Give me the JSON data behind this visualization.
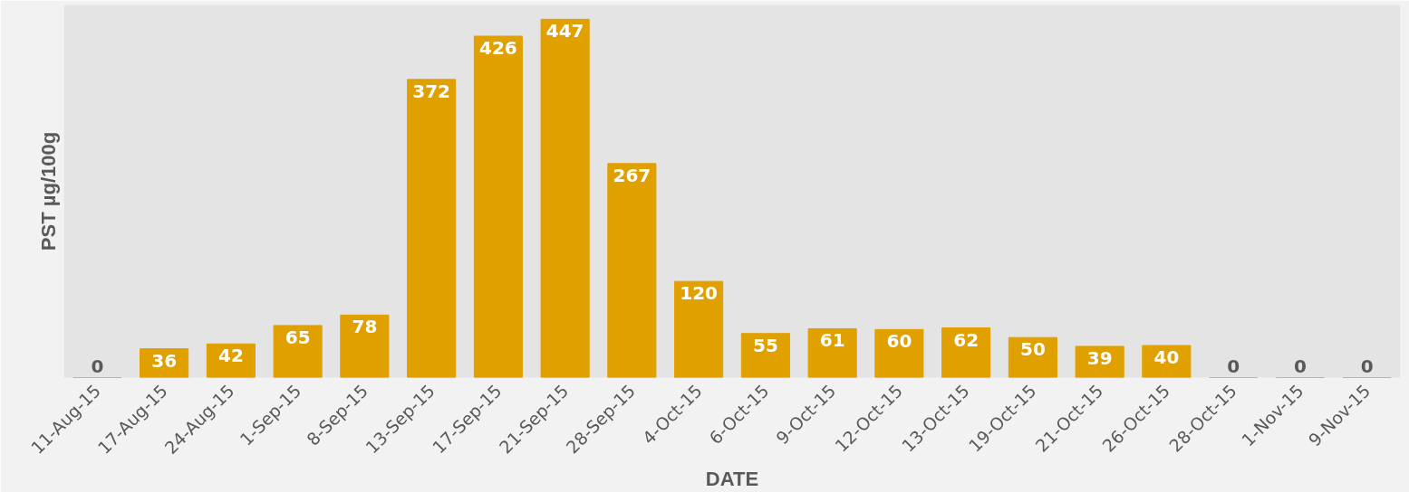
{
  "chart_data": {
    "type": "bar",
    "xlabel": "DATE",
    "ylabel": "PST µg/100g",
    "categories": [
      "11-Aug-15",
      "17-Aug-15",
      "24-Aug-15",
      "1-Sep-15",
      "8-Sep-15",
      "13-Sep-15",
      "17-Sep-15",
      "21-Sep-15",
      "28-Sep-15",
      "4-Oct-15",
      "6-Oct-15",
      "9-Oct-15",
      "12-Oct-15",
      "13-Oct-15",
      "19-Oct-15",
      "21-Oct-15",
      "26-Oct-15",
      "28-Oct-15",
      "1-Nov-15",
      "9-Nov-15"
    ],
    "values": [
      0,
      36,
      42,
      65,
      78,
      372,
      426,
      447,
      267,
      120,
      55,
      61,
      60,
      62,
      50,
      39,
      40,
      0,
      0,
      0
    ],
    "color": "#e0a000",
    "data_labels": true
  }
}
